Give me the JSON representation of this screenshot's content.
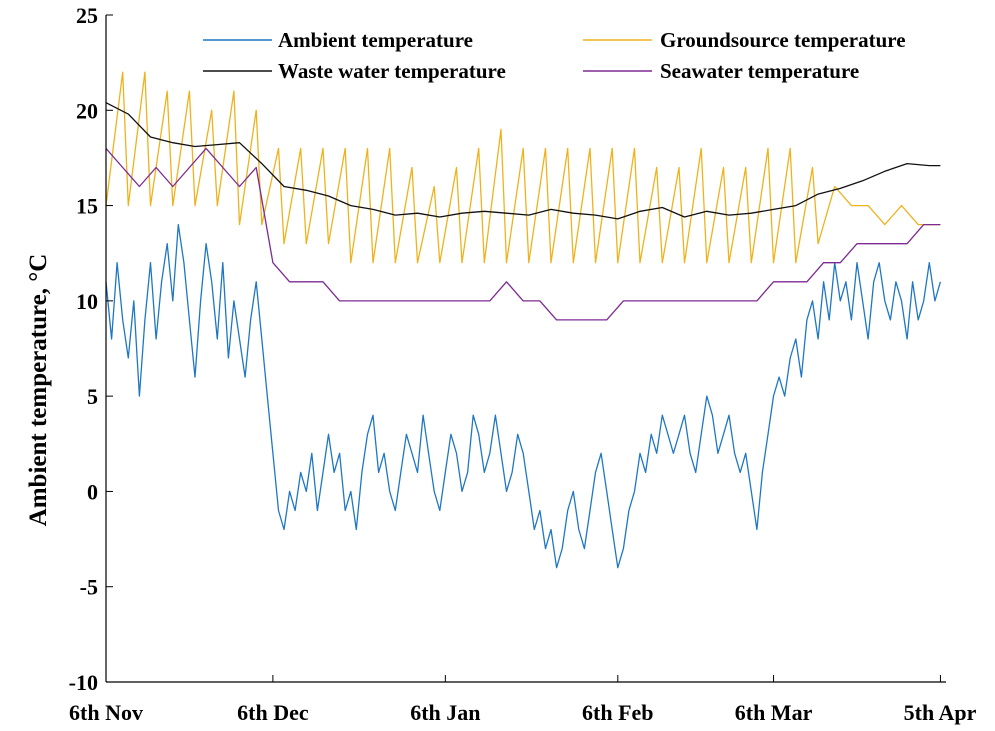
{
  "chart_data": {
    "type": "line",
    "title": "",
    "xlabel": "",
    "ylabel": "Ambient temperature, °C",
    "ylabel_text": "Ambient temperature,",
    "ylabel_unit": "°C",
    "ylim": [
      -10,
      25
    ],
    "yticks": [
      -10,
      -5,
      0,
      5,
      10,
      15,
      20,
      25
    ],
    "xlim": [
      0,
      151
    ],
    "x_unit": "days since 6th Nov",
    "xticks": [
      {
        "day": 0,
        "label": "6th Nov"
      },
      {
        "day": 30,
        "label": "6th Dec"
      },
      {
        "day": 61,
        "label": "6th Jan"
      },
      {
        "day": 92,
        "label": "6th Feb"
      },
      {
        "day": 120,
        "label": "6th Mar"
      },
      {
        "day": 150,
        "label": "5th Apr"
      }
    ],
    "legend_position": "top",
    "series": [
      {
        "name": "Ambient temperature",
        "color": "#1f77c4",
        "points": [
          [
            0,
            11
          ],
          [
            1,
            8
          ],
          [
            2,
            12
          ],
          [
            3,
            9
          ],
          [
            4,
            7
          ],
          [
            5,
            10
          ],
          [
            6,
            5
          ],
          [
            7,
            9
          ],
          [
            8,
            12
          ],
          [
            9,
            8
          ],
          [
            10,
            11
          ],
          [
            11,
            13
          ],
          [
            12,
            10
          ],
          [
            13,
            14
          ],
          [
            14,
            12
          ],
          [
            15,
            9
          ],
          [
            16,
            6
          ],
          [
            17,
            10
          ],
          [
            18,
            13
          ],
          [
            19,
            11
          ],
          [
            20,
            8
          ],
          [
            21,
            12
          ],
          [
            22,
            7
          ],
          [
            23,
            10
          ],
          [
            24,
            8
          ],
          [
            25,
            6
          ],
          [
            26,
            9
          ],
          [
            27,
            11
          ],
          [
            28,
            8
          ],
          [
            29,
            5
          ],
          [
            30,
            2
          ],
          [
            31,
            -1
          ],
          [
            32,
            -2
          ],
          [
            33,
            0
          ],
          [
            34,
            -1
          ],
          [
            35,
            1
          ],
          [
            36,
            0
          ],
          [
            37,
            2
          ],
          [
            38,
            -1
          ],
          [
            39,
            1
          ],
          [
            40,
            3
          ],
          [
            41,
            1
          ],
          [
            42,
            2
          ],
          [
            43,
            -1
          ],
          [
            44,
            0
          ],
          [
            45,
            -2
          ],
          [
            46,
            1
          ],
          [
            47,
            3
          ],
          [
            48,
            4
          ],
          [
            49,
            1
          ],
          [
            50,
            2
          ],
          [
            51,
            0
          ],
          [
            52,
            -1
          ],
          [
            53,
            1
          ],
          [
            54,
            3
          ],
          [
            55,
            2
          ],
          [
            56,
            1
          ],
          [
            57,
            4
          ],
          [
            58,
            2
          ],
          [
            59,
            0
          ],
          [
            60,
            -1
          ],
          [
            61,
            1
          ],
          [
            62,
            3
          ],
          [
            63,
            2
          ],
          [
            64,
            0
          ],
          [
            65,
            1
          ],
          [
            66,
            4
          ],
          [
            67,
            3
          ],
          [
            68,
            1
          ],
          [
            69,
            2
          ],
          [
            70,
            4
          ],
          [
            71,
            2
          ],
          [
            72,
            0
          ],
          [
            73,
            1
          ],
          [
            74,
            3
          ],
          [
            75,
            2
          ],
          [
            76,
            0
          ],
          [
            77,
            -2
          ],
          [
            78,
            -1
          ],
          [
            79,
            -3
          ],
          [
            80,
            -2
          ],
          [
            81,
            -4
          ],
          [
            82,
            -3
          ],
          [
            83,
            -1
          ],
          [
            84,
            0
          ],
          [
            85,
            -2
          ],
          [
            86,
            -3
          ],
          [
            87,
            -1
          ],
          [
            88,
            1
          ],
          [
            89,
            2
          ],
          [
            90,
            0
          ],
          [
            91,
            -2
          ],
          [
            92,
            -4
          ],
          [
            93,
            -3
          ],
          [
            94,
            -1
          ],
          [
            95,
            0
          ],
          [
            96,
            2
          ],
          [
            97,
            1
          ],
          [
            98,
            3
          ],
          [
            99,
            2
          ],
          [
            100,
            4
          ],
          [
            101,
            3
          ],
          [
            102,
            2
          ],
          [
            103,
            3
          ],
          [
            104,
            4
          ],
          [
            105,
            2
          ],
          [
            106,
            1
          ],
          [
            107,
            3
          ],
          [
            108,
            5
          ],
          [
            109,
            4
          ],
          [
            110,
            2
          ],
          [
            111,
            3
          ],
          [
            112,
            4
          ],
          [
            113,
            2
          ],
          [
            114,
            1
          ],
          [
            115,
            2
          ],
          [
            116,
            0
          ],
          [
            117,
            -2
          ],
          [
            118,
            1
          ],
          [
            119,
            3
          ],
          [
            120,
            5
          ],
          [
            121,
            6
          ],
          [
            122,
            5
          ],
          [
            123,
            7
          ],
          [
            124,
            8
          ],
          [
            125,
            6
          ],
          [
            126,
            9
          ],
          [
            127,
            10
          ],
          [
            128,
            8
          ],
          [
            129,
            11
          ],
          [
            130,
            9
          ],
          [
            131,
            12
          ],
          [
            132,
            10
          ],
          [
            133,
            11
          ],
          [
            134,
            9
          ],
          [
            135,
            12
          ],
          [
            136,
            10
          ],
          [
            137,
            8
          ],
          [
            138,
            11
          ],
          [
            139,
            12
          ],
          [
            140,
            10
          ],
          [
            141,
            9
          ],
          [
            142,
            11
          ],
          [
            143,
            10
          ],
          [
            144,
            8
          ],
          [
            145,
            11
          ],
          [
            146,
            9
          ],
          [
            147,
            10
          ],
          [
            148,
            12
          ],
          [
            149,
            10
          ],
          [
            150,
            11
          ]
        ]
      },
      {
        "name": "Groundsource temperature",
        "color": "#efb21d",
        "points": [
          [
            0,
            15
          ],
          [
            3,
            22
          ],
          [
            4,
            15
          ],
          [
            7,
            22
          ],
          [
            8,
            15
          ],
          [
            11,
            21
          ],
          [
            12,
            15
          ],
          [
            15,
            21
          ],
          [
            16,
            15
          ],
          [
            19,
            20
          ],
          [
            20,
            15
          ],
          [
            23,
            21
          ],
          [
            24,
            14
          ],
          [
            27,
            20
          ],
          [
            28,
            14
          ],
          [
            31,
            18
          ],
          [
            32,
            13
          ],
          [
            35,
            18
          ],
          [
            36,
            13
          ],
          [
            39,
            18
          ],
          [
            40,
            13
          ],
          [
            43,
            18
          ],
          [
            44,
            12
          ],
          [
            47,
            18
          ],
          [
            48,
            12
          ],
          [
            51,
            18
          ],
          [
            52,
            12
          ],
          [
            55,
            17
          ],
          [
            56,
            12
          ],
          [
            59,
            16
          ],
          [
            60,
            12
          ],
          [
            63,
            17
          ],
          [
            64,
            12
          ],
          [
            67,
            18
          ],
          [
            68,
            12
          ],
          [
            71,
            19
          ],
          [
            72,
            12
          ],
          [
            75,
            18
          ],
          [
            76,
            12
          ],
          [
            79,
            18
          ],
          [
            80,
            12
          ],
          [
            83,
            18
          ],
          [
            84,
            12
          ],
          [
            87,
            18
          ],
          [
            88,
            12
          ],
          [
            91,
            18
          ],
          [
            92,
            12
          ],
          [
            95,
            18
          ],
          [
            96,
            12
          ],
          [
            99,
            17
          ],
          [
            100,
            12
          ],
          [
            103,
            17
          ],
          [
            104,
            12
          ],
          [
            107,
            18
          ],
          [
            108,
            12
          ],
          [
            111,
            17
          ],
          [
            112,
            12
          ],
          [
            115,
            17
          ],
          [
            116,
            12
          ],
          [
            119,
            18
          ],
          [
            120,
            12
          ],
          [
            123,
            18
          ],
          [
            124,
            12
          ],
          [
            127,
            17
          ],
          [
            128,
            13
          ],
          [
            131,
            16
          ],
          [
            134,
            15
          ],
          [
            137,
            15
          ],
          [
            140,
            14
          ],
          [
            143,
            15
          ],
          [
            146,
            14
          ],
          [
            150,
            14
          ]
        ]
      },
      {
        "name": "Waste water temperature",
        "color": "#111111",
        "points": [
          [
            0,
            20.4
          ],
          [
            4,
            19.8
          ],
          [
            8,
            18.6
          ],
          [
            12,
            18.3
          ],
          [
            16,
            18.1
          ],
          [
            20,
            18.2
          ],
          [
            24,
            18.3
          ],
          [
            28,
            17.2
          ],
          [
            32,
            16.0
          ],
          [
            36,
            15.8
          ],
          [
            40,
            15.5
          ],
          [
            44,
            15.0
          ],
          [
            48,
            14.8
          ],
          [
            52,
            14.5
          ],
          [
            56,
            14.6
          ],
          [
            60,
            14.4
          ],
          [
            64,
            14.6
          ],
          [
            68,
            14.7
          ],
          [
            72,
            14.6
          ],
          [
            76,
            14.5
          ],
          [
            80,
            14.8
          ],
          [
            84,
            14.6
          ],
          [
            88,
            14.5
          ],
          [
            92,
            14.3
          ],
          [
            96,
            14.7
          ],
          [
            100,
            14.9
          ],
          [
            104,
            14.4
          ],
          [
            108,
            14.7
          ],
          [
            112,
            14.5
          ],
          [
            116,
            14.6
          ],
          [
            120,
            14.8
          ],
          [
            124,
            15.0
          ],
          [
            128,
            15.6
          ],
          [
            132,
            15.9
          ],
          [
            136,
            16.3
          ],
          [
            140,
            16.8
          ],
          [
            144,
            17.2
          ],
          [
            148,
            17.1
          ],
          [
            150,
            17.1
          ]
        ]
      },
      {
        "name": "Seawater temperature",
        "color": "#7d2a93",
        "points": [
          [
            0,
            18
          ],
          [
            3,
            17
          ],
          [
            6,
            16
          ],
          [
            9,
            17
          ],
          [
            12,
            16
          ],
          [
            15,
            17
          ],
          [
            18,
            18
          ],
          [
            21,
            17
          ],
          [
            24,
            16
          ],
          [
            27,
            17
          ],
          [
            30,
            12
          ],
          [
            33,
            11
          ],
          [
            36,
            11
          ],
          [
            39,
            11
          ],
          [
            42,
            10
          ],
          [
            45,
            10
          ],
          [
            48,
            10
          ],
          [
            51,
            10
          ],
          [
            54,
            10
          ],
          [
            57,
            10
          ],
          [
            60,
            10
          ],
          [
            63,
            10
          ],
          [
            66,
            10
          ],
          [
            69,
            10
          ],
          [
            72,
            11
          ],
          [
            75,
            10
          ],
          [
            78,
            10
          ],
          [
            81,
            9
          ],
          [
            84,
            9
          ],
          [
            87,
            9
          ],
          [
            90,
            9
          ],
          [
            93,
            10
          ],
          [
            96,
            10
          ],
          [
            99,
            10
          ],
          [
            102,
            10
          ],
          [
            105,
            10
          ],
          [
            108,
            10
          ],
          [
            111,
            10
          ],
          [
            114,
            10
          ],
          [
            117,
            10
          ],
          [
            120,
            11
          ],
          [
            123,
            11
          ],
          [
            126,
            11
          ],
          [
            129,
            12
          ],
          [
            132,
            12
          ],
          [
            135,
            13
          ],
          [
            138,
            13
          ],
          [
            141,
            13
          ],
          [
            144,
            13
          ],
          [
            147,
            14
          ],
          [
            150,
            14
          ]
        ]
      }
    ]
  }
}
